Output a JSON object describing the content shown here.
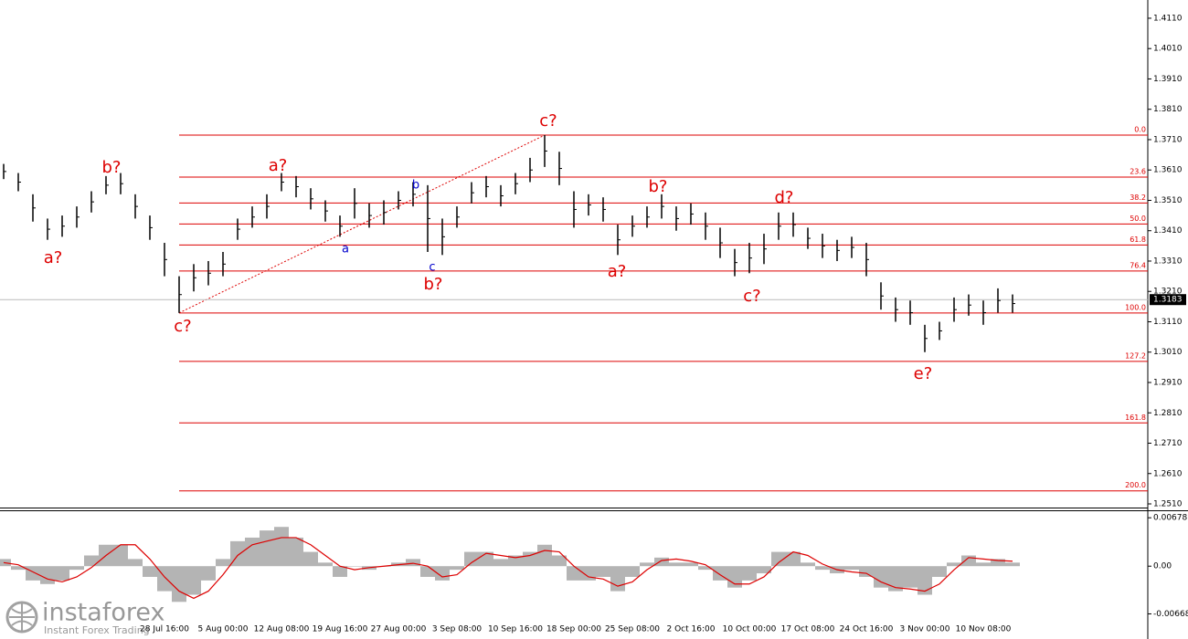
{
  "chart_data": [
    {
      "type": "ohlc",
      "categories": [
        null,
        null,
        null,
        null,
        null,
        null,
        null,
        null,
        null,
        null,
        null,
        "28 Jul 16:00",
        null,
        null,
        null,
        "5 Aug 00:00",
        null,
        null,
        null,
        "12 Aug 08:00",
        null,
        null,
        null,
        "19 Aug 16:00",
        null,
        null,
        null,
        "27 Aug 00:00",
        null,
        null,
        null,
        "3 Sep 08:00",
        null,
        null,
        null,
        "10 Sep 16:00",
        null,
        null,
        null,
        "18 Sep 00:00",
        null,
        null,
        null,
        "25 Sep 08:00",
        null,
        null,
        null,
        "2 Oct 16:00",
        null,
        null,
        null,
        "10 Oct 00:00",
        null,
        null,
        null,
        "17 Oct 08:00",
        null,
        null,
        null,
        "24 Oct 16:00",
        null,
        null,
        null,
        "3 Nov 00:00",
        null,
        null,
        null,
        "10 Nov 08:00",
        null,
        null
      ],
      "high": [
        1.363,
        1.36,
        1.353,
        1.345,
        1.346,
        1.349,
        1.354,
        1.359,
        1.36,
        1.353,
        1.346,
        1.337,
        1.326,
        1.33,
        1.331,
        1.334,
        1.345,
        1.349,
        1.353,
        1.36,
        1.359,
        1.355,
        1.351,
        1.346,
        1.355,
        1.35,
        1.351,
        1.354,
        1.357,
        1.356,
        1.345,
        1.349,
        1.357,
        1.359,
        1.356,
        1.36,
        1.365,
        1.3725,
        1.367,
        1.354,
        1.353,
        1.352,
        1.343,
        1.346,
        1.349,
        1.353,
        1.349,
        1.35,
        1.347,
        1.342,
        1.335,
        1.337,
        1.34,
        1.347,
        1.347,
        1.342,
        1.34,
        1.338,
        1.339,
        1.337,
        1.324,
        1.319,
        1.318,
        1.31,
        1.311,
        1.319,
        1.32,
        1.318,
        1.322,
        1.32
      ],
      "low": [
        1.358,
        1.354,
        1.344,
        1.338,
        1.339,
        1.342,
        1.347,
        1.353,
        1.353,
        1.345,
        1.338,
        1.326,
        1.3139,
        1.321,
        1.323,
        1.326,
        1.338,
        1.342,
        1.345,
        1.354,
        1.352,
        1.348,
        1.344,
        1.339,
        1.345,
        1.342,
        1.343,
        1.348,
        1.349,
        1.334,
        1.333,
        1.342,
        1.35,
        1.352,
        1.349,
        1.353,
        1.357,
        1.362,
        1.356,
        1.342,
        1.346,
        1.344,
        1.333,
        1.339,
        1.342,
        1.345,
        1.341,
        1.343,
        1.338,
        1.332,
        1.326,
        1.327,
        1.33,
        1.338,
        1.339,
        1.335,
        1.332,
        1.331,
        1.332,
        1.326,
        1.315,
        1.311,
        1.31,
        1.301,
        1.305,
        1.311,
        1.313,
        1.31,
        1.314,
        1.314
      ],
      "color": "#000000",
      "ylim": [
        1.2495,
        1.417
      ],
      "yticks": [
        {
          "value": 1.251,
          "label": "1.2510"
        },
        {
          "value": 1.261,
          "label": "1.2610"
        },
        {
          "value": 1.271,
          "label": "1.2710"
        },
        {
          "value": 1.281,
          "label": "1.2810"
        },
        {
          "value": 1.291,
          "label": "1.2910"
        },
        {
          "value": 1.301,
          "label": "1.3010"
        },
        {
          "value": 1.311,
          "label": "1.3110"
        },
        {
          "value": 1.321,
          "label": "1.3210"
        },
        {
          "value": 1.331,
          "label": "1.3310"
        },
        {
          "value": 1.341,
          "label": "1.3410"
        },
        {
          "value": 1.351,
          "label": "1.3510"
        },
        {
          "value": 1.361,
          "label": "1.3610"
        },
        {
          "value": 1.371,
          "label": "1.3710"
        },
        {
          "value": 1.381,
          "label": "1.3810"
        },
        {
          "value": 1.391,
          "label": "1.3910"
        },
        {
          "value": 1.401,
          "label": "1.4010"
        },
        {
          "value": 1.411,
          "label": "1.4110"
        }
      ],
      "last_price": 1.3183,
      "fibonacci": {
        "start": 1.3725,
        "end": 1.3139,
        "color": "#dd0000",
        "levels": [
          {
            "value": 0,
            "label": "0.0"
          },
          23.6,
          38.2,
          {
            "value": 50,
            "label": "50.0"
          },
          61.8,
          76.4,
          {
            "value": 100,
            "label": "100.0"
          },
          127.2,
          161.8,
          {
            "value": 200,
            "label": "200.0"
          }
        ]
      },
      "annotations": [
        {
          "text": "a?",
          "color": "#dd0000"
        },
        {
          "text": "b?",
          "color": "#dd0000"
        },
        {
          "text": "c?",
          "color": "#dd0000"
        },
        {
          "text": "a?",
          "color": "#dd0000"
        },
        {
          "text": "a",
          "color": "#0000cc"
        },
        {
          "text": "b",
          "color": "#0000cc"
        },
        {
          "text": "c",
          "color": "#0000cc"
        },
        {
          "text": "b?",
          "color": "#dd0000"
        },
        {
          "text": "c?",
          "color": "#dd0000"
        },
        {
          "text": "b?",
          "color": "#dd0000"
        },
        {
          "text": "a?",
          "color": "#dd0000"
        },
        {
          "text": "d?",
          "color": "#dd0000"
        },
        {
          "text": "c?",
          "color": "#dd0000"
        },
        {
          "text": "e?",
          "color": "#dd0000"
        }
      ]
    },
    {
      "type": "oscillator",
      "series": [
        {
          "color": "#b4b4b4",
          "values": [
            0.001,
            -0.0005,
            -0.002,
            -0.0025,
            -0.002,
            -0.0005,
            0.0015,
            0.003,
            0.003,
            0.001,
            -0.0015,
            -0.0035,
            -0.005,
            -0.004,
            -0.002,
            0.001,
            0.0035,
            0.004,
            0.005,
            0.0055,
            0.004,
            0.002,
            0.0005,
            -0.0015,
            0.0,
            -0.0005,
            0.0,
            0.0005,
            0.001,
            -0.0015,
            -0.002,
            -0.0005,
            0.002,
            0.002,
            0.001,
            0.0015,
            0.002,
            0.003,
            0.0015,
            -0.002,
            -0.002,
            -0.0015,
            -0.0035,
            -0.0015,
            0.0005,
            0.0012,
            0.0005,
            0.0005,
            -0.0005,
            -0.002,
            -0.003,
            -0.002,
            -0.001,
            0.002,
            0.002,
            0.0005,
            -0.0005,
            -0.001,
            -0.0005,
            -0.0015,
            -0.003,
            -0.0035,
            -0.003,
            -0.004,
            -0.0015,
            0.0005,
            0.0015,
            0.0005,
            0.001,
            0.0005
          ]
        },
        {
          "color": "#dd0000",
          "values": [
            0.0005,
            0.0002,
            -0.0008,
            -0.0018,
            -0.0022,
            -0.0015,
            -0.0002,
            0.0015,
            0.003,
            0.003,
            0.001,
            -0.0015,
            -0.0035,
            -0.0045,
            -0.0035,
            -0.0012,
            0.0015,
            0.003,
            0.0035,
            0.004,
            0.004,
            0.003,
            0.0015,
            0.0,
            -0.0005,
            -0.0002,
            0.0,
            0.0002,
            0.0004,
            0.0,
            -0.0015,
            -0.0012,
            0.0005,
            0.0018,
            0.0015,
            0.0012,
            0.0015,
            0.0022,
            0.002,
            0.0,
            -0.0015,
            -0.0018,
            -0.0028,
            -0.0022,
            -0.0005,
            0.0008,
            0.001,
            0.0007,
            0.0002,
            -0.0012,
            -0.0025,
            -0.0025,
            -0.0015,
            0.0005,
            0.002,
            0.0015,
            0.0003,
            -0.0005,
            -0.0008,
            -0.001,
            -0.0022,
            -0.003,
            -0.0032,
            -0.0035,
            -0.0025,
            -0.0005,
            0.0012,
            0.001,
            0.0008,
            0.0007
          ]
        }
      ],
      "ylim": [
        -0.0102,
        0.0077
      ],
      "yticks": [
        0.00678,
        {
          "value": 0,
          "label": "0.00"
        },
        -0.00668
      ]
    }
  ],
  "watermark": {
    "brand": "instaforex",
    "tagline": "Instant Forex Trading"
  }
}
